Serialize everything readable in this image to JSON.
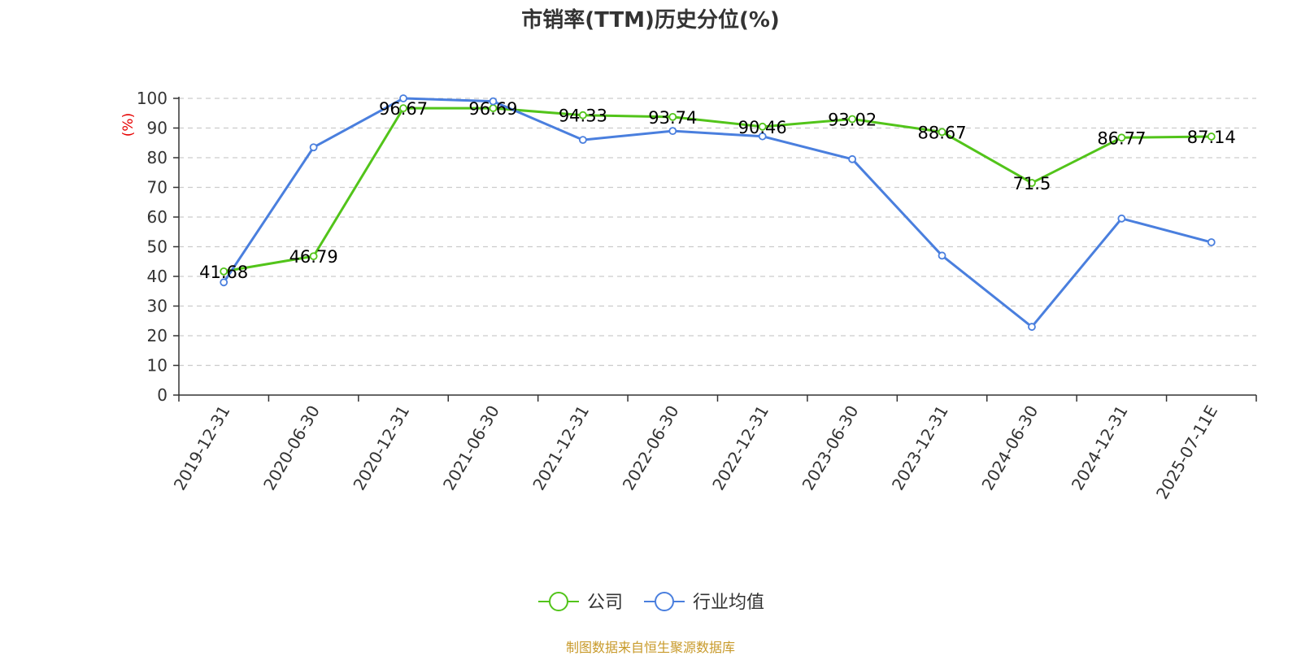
{
  "source": "制图数据来自恒生聚源数据库",
  "chart_data": {
    "type": "line",
    "title": "市销率(TTM)历史分位(%)",
    "ylabel": "(%)",
    "xlabel": "",
    "ylim": [
      0,
      100
    ],
    "yticks": [
      0,
      10,
      20,
      30,
      40,
      50,
      60,
      70,
      80,
      90,
      100
    ],
    "grid": true,
    "legend_position": "bottom",
    "categories": [
      "2019-12-31",
      "2020-06-30",
      "2020-12-31",
      "2021-06-30",
      "2021-12-31",
      "2022-06-30",
      "2022-12-31",
      "2023-06-30",
      "2023-12-31",
      "2024-06-30",
      "2024-12-31",
      "2025-07-11E"
    ],
    "series": [
      {
        "name": "公司",
        "color": "#52c41a",
        "show_labels": true,
        "labels": [
          "41.68",
          "46.79",
          "96.67",
          "96.69",
          "94.33",
          "93.74",
          "90.46",
          "93.02",
          "88.67",
          "71.5",
          "86.77",
          "87.14"
        ],
        "values": [
          41.68,
          46.79,
          96.67,
          96.69,
          94.33,
          93.74,
          90.46,
          93.02,
          88.67,
          71.5,
          86.77,
          87.14
        ]
      },
      {
        "name": "行业均值",
        "color": "#4a7fde",
        "show_labels": false,
        "values": [
          38,
          83.5,
          100,
          99,
          86,
          89,
          87.2,
          79.5,
          47,
          23,
          59.5,
          51.5
        ]
      }
    ]
  }
}
